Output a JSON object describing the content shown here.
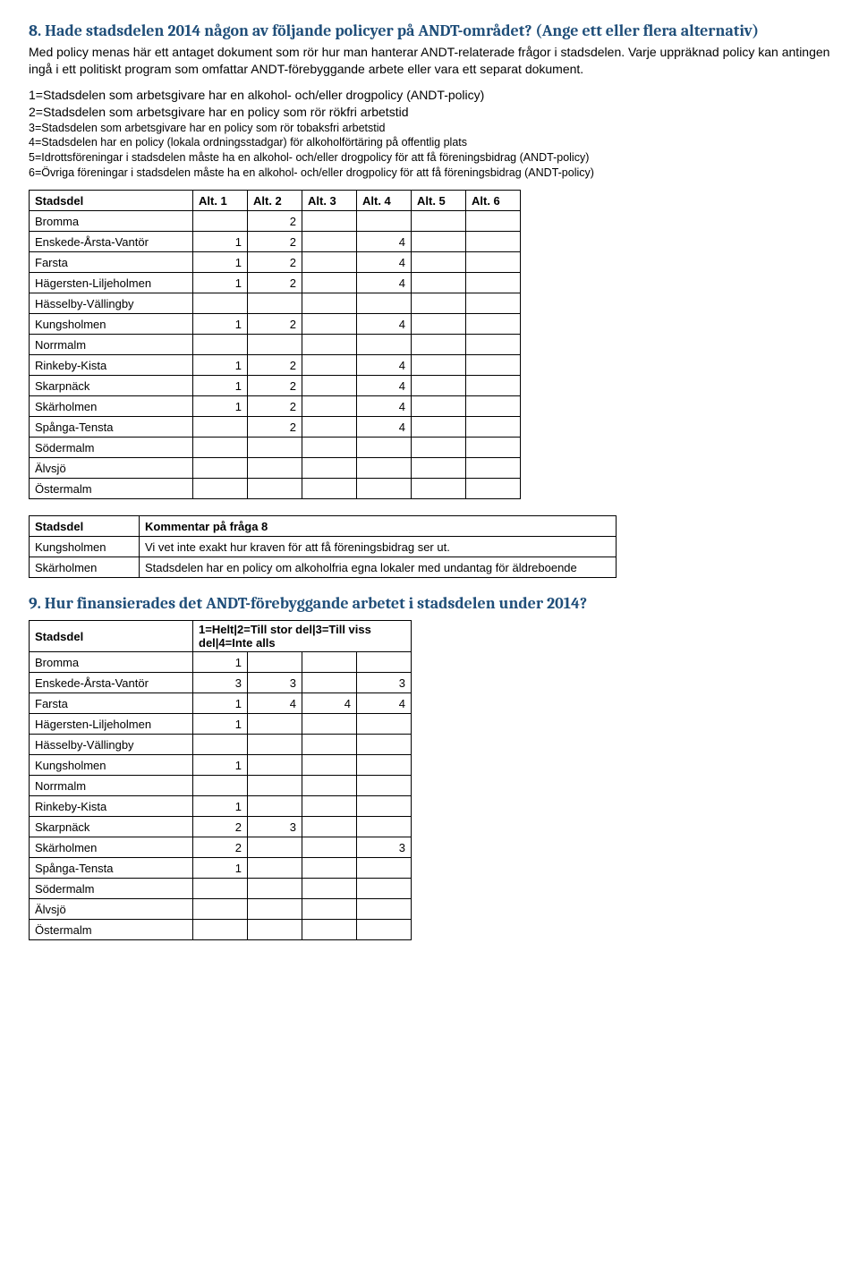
{
  "q8": {
    "title": "8. Hade stadsdelen 2014 någon av följande policyer på ANDT-området? (Ange ett eller flera alternativ)",
    "intro": "Med policy menas här ett antaget dokument som rör hur man hanterar ANDT-relaterade frågor i stadsdelen. Varje uppräknad policy kan antingen ingå i ett politiskt program som omfattar ANDT-förebyggande arbete eller vara ett separat dokument.",
    "defs": [
      "1=Stadsdelen som arbetsgivare har en alkohol- och/eller drogpolicy (ANDT-policy)",
      "2=Stadsdelen som arbetsgivare har en policy som rör rökfri arbetstid",
      "3=Stadsdelen som arbetsgivare har en policy som rör tobaksfri arbetstid",
      "4=Stadsdelen har en policy (lokala ordningsstadgar) för alkoholförtäring på offentlig plats",
      "5=Idrottsföreningar i stadsdelen måste ha en alkohol- och/eller drogpolicy för att få föreningsbidrag (ANDT-policy)",
      "6=Övriga föreningar i stadsdelen måste ha en alkohol- och/eller drogpolicy för att få föreningsbidrag (ANDT-policy)"
    ],
    "def_small_from": 2,
    "table": {
      "head": [
        "Stadsdel",
        "Alt. 1",
        "Alt. 2",
        "Alt. 3",
        "Alt. 4",
        "Alt. 5",
        "Alt. 6"
      ],
      "rows": [
        [
          "Bromma",
          "",
          "2",
          "",
          "",
          "",
          ""
        ],
        [
          "Enskede-Årsta-Vantör",
          "1",
          "2",
          "",
          "4",
          "",
          ""
        ],
        [
          "Farsta",
          "1",
          "2",
          "",
          "4",
          "",
          ""
        ],
        [
          "Hägersten-Liljeholmen",
          "1",
          "2",
          "",
          "4",
          "",
          ""
        ],
        [
          "Hässelby-Vällingby",
          "",
          "",
          "",
          "",
          "",
          ""
        ],
        [
          "Kungsholmen",
          "1",
          "2",
          "",
          "4",
          "",
          ""
        ],
        [
          "Norrmalm",
          "",
          "",
          "",
          "",
          "",
          ""
        ],
        [
          "Rinkeby-Kista",
          "1",
          "2",
          "",
          "4",
          "",
          ""
        ],
        [
          "Skarpnäck",
          "1",
          "2",
          "",
          "4",
          "",
          ""
        ],
        [
          "Skärholmen",
          "1",
          "2",
          "",
          "4",
          "",
          ""
        ],
        [
          "Spånga-Tensta",
          "",
          "2",
          "",
          "4",
          "",
          ""
        ],
        [
          "Södermalm",
          "",
          "",
          "",
          "",
          "",
          ""
        ],
        [
          "Älvsjö",
          "",
          "",
          "",
          "",
          "",
          ""
        ],
        [
          "Östermalm",
          "",
          "",
          "",
          "",
          "",
          ""
        ]
      ]
    },
    "comments": {
      "head": [
        "Stadsdel",
        "Kommentar på fråga 8"
      ],
      "rows": [
        [
          "Kungsholmen",
          "Vi vet inte exakt hur kraven för att få föreningsbidrag ser ut."
        ],
        [
          "Skärholmen",
          "Stadsdelen har en policy om alkoholfria egna lokaler med undantag för äldreboende"
        ]
      ]
    }
  },
  "q9": {
    "title": "9. Hur finansierades det ANDT-förebyggande arbetet i stadsdelen under 2014?",
    "table": {
      "head": [
        "Stadsdel",
        "1=Helt|2=Till stor del|3=Till viss del|4=Inte alls"
      ],
      "rows": [
        [
          "Bromma",
          "1",
          "",
          "",
          ""
        ],
        [
          "Enskede-Årsta-Vantör",
          "3",
          "3",
          "",
          "3"
        ],
        [
          "Farsta",
          "1",
          "4",
          "4",
          "4"
        ],
        [
          "Hägersten-Liljeholmen",
          "1",
          "",
          "",
          ""
        ],
        [
          "Hässelby-Vällingby",
          "",
          "",
          "",
          ""
        ],
        [
          "Kungsholmen",
          "1",
          "",
          "",
          ""
        ],
        [
          "Norrmalm",
          "",
          "",
          "",
          ""
        ],
        [
          "Rinkeby-Kista",
          "1",
          "",
          "",
          ""
        ],
        [
          "Skarpnäck",
          "2",
          "3",
          "",
          ""
        ],
        [
          "Skärholmen",
          "2",
          "",
          "",
          "3"
        ],
        [
          "Spånga-Tensta",
          "1",
          "",
          "",
          ""
        ],
        [
          "Södermalm",
          "",
          "",
          "",
          ""
        ],
        [
          "Älvsjö",
          "",
          "",
          "",
          ""
        ],
        [
          "Östermalm",
          "",
          "",
          "",
          ""
        ]
      ]
    }
  }
}
